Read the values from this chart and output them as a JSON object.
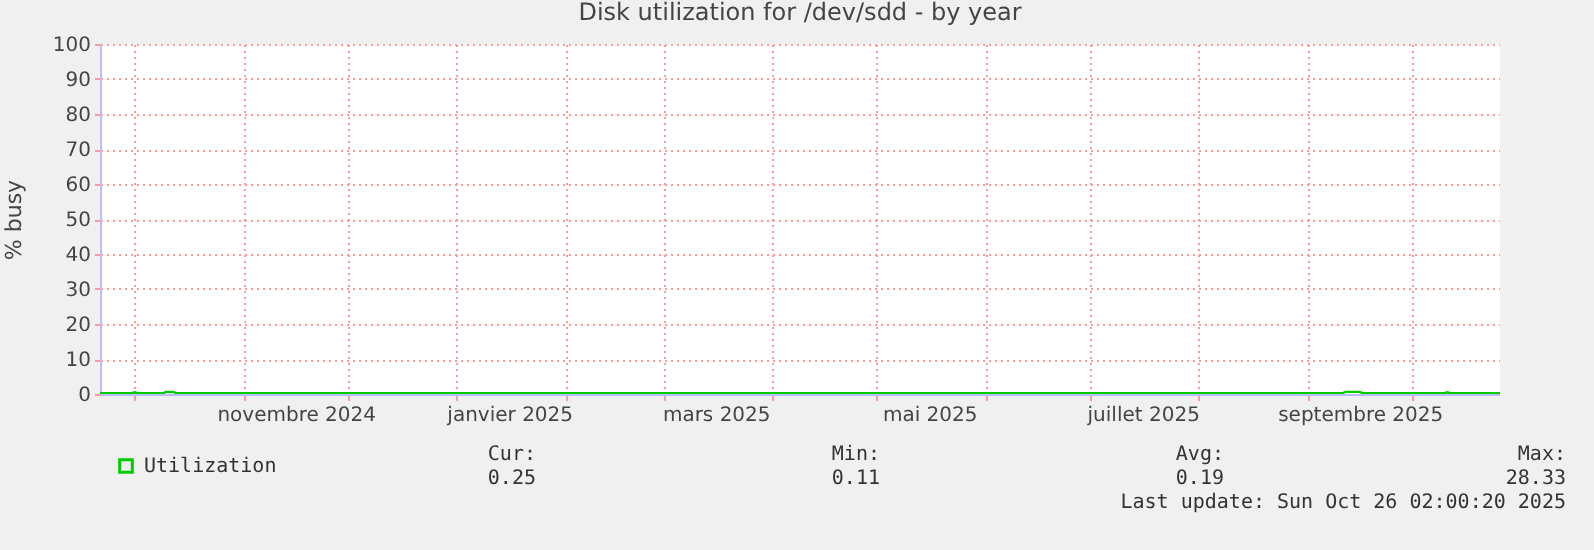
{
  "chart_data": {
    "type": "line",
    "title": "Disk utilization for /dev/sdd - by year",
    "ylabel": "% busy",
    "x": [
      "2024-09-21T02:00",
      "2024-09-30",
      "2024-10-01",
      "2024-10-02",
      "2024-10-09",
      "2024-10-10",
      "2024-10-12",
      "2024-10-13",
      "2025-01-01",
      "2025-05-01",
      "2025-09-11",
      "2025-09-12",
      "2025-09-16",
      "2025-09-17",
      "2025-10-10",
      "2025-10-11",
      "2025-10-12",
      "2025-10-26T02:00"
    ],
    "series": [
      {
        "name": "Utilization",
        "color": "#00cc00",
        "values": [
          0.2,
          0.2,
          0.5,
          0.2,
          0.2,
          0.6,
          0.6,
          0.2,
          0.2,
          0.2,
          0.2,
          0.6,
          0.6,
          0.2,
          0.2,
          0.5,
          0.2,
          0.25
        ]
      }
    ],
    "xlim": [
      "2024-09-21T02:00",
      "2025-10-26T02:00"
    ],
    "xticks": [
      {
        "value": "2024-10-01",
        "label": null
      },
      {
        "value": "2024-11-01",
        "label": null
      },
      {
        "value": "2024-11-16",
        "label": "novembre 2024"
      },
      {
        "value": "2024-12-01",
        "label": null
      },
      {
        "value": "2025-01-01",
        "label": null
      },
      {
        "value": "2025-01-16",
        "label": "janvier 2025"
      },
      {
        "value": "2025-02-01",
        "label": null
      },
      {
        "value": "2025-03-01",
        "label": null
      },
      {
        "value": "2025-03-16",
        "label": "mars 2025"
      },
      {
        "value": "2025-04-01",
        "label": null
      },
      {
        "value": "2025-05-01",
        "label": null
      },
      {
        "value": "2025-05-16",
        "label": "mai 2025"
      },
      {
        "value": "2025-06-01",
        "label": null
      },
      {
        "value": "2025-07-01",
        "label": null
      },
      {
        "value": "2025-07-16",
        "label": "juillet 2025"
      },
      {
        "value": "2025-08-01",
        "label": null
      },
      {
        "value": "2025-09-01",
        "label": null
      },
      {
        "value": "2025-09-16",
        "label": "septembre 2025"
      },
      {
        "value": "2025-10-01",
        "label": null
      }
    ],
    "ylim": [
      0,
      100
    ],
    "yticks": [
      0,
      10,
      20,
      30,
      40,
      50,
      60,
      70,
      80,
      90,
      100
    ],
    "grid": true,
    "legend": "bottom left",
    "annotations": [
      "Cur:",
      "0.25",
      "Min:",
      "0.11",
      "Avg:",
      "0.19",
      "Max:",
      "28.33",
      "Last update: Sun Oct 26 02:00:20 2025"
    ]
  }
}
